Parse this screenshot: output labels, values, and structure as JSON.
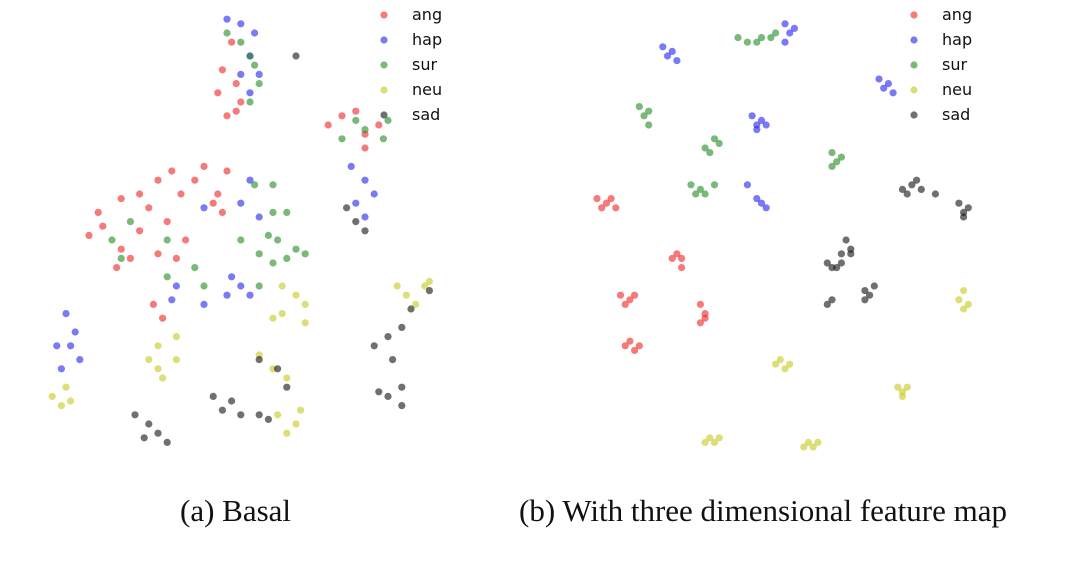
{
  "legend": [
    {
      "key": "ang",
      "label": "ang",
      "color": "#ee2222"
    },
    {
      "key": "hap",
      "label": "hap",
      "color": "#2222ee"
    },
    {
      "key": "sur",
      "label": "sur",
      "color": "#228b22"
    },
    {
      "key": "neu",
      "label": "neu",
      "color": "#c8c81e"
    },
    {
      "key": "sad",
      "label": "sad",
      "color": "#111111"
    }
  ],
  "captions": {
    "a": "(a) Basal",
    "b": "(b) With three dimensional feature map"
  },
  "chart_data": [
    {
      "type": "scatter",
      "title": "",
      "xlabel": "",
      "ylabel": "",
      "xlim": [
        0,
        100
      ],
      "ylim": [
        0,
        100
      ],
      "grid": false,
      "legend_position": "top-right",
      "series": [
        {
          "name": "ang",
          "points": [
            [
              46,
              93
            ],
            [
              44,
              87
            ],
            [
              47,
              84
            ],
            [
              48,
              80
            ],
            [
              43,
              82
            ],
            [
              45,
              77
            ],
            [
              47,
              78
            ],
            [
              40,
              66
            ],
            [
              33,
              65
            ],
            [
              30,
              63
            ],
            [
              26,
              60
            ],
            [
              22,
              59
            ],
            [
              17,
              56
            ],
            [
              18,
              53
            ],
            [
              15,
              51
            ],
            [
              28,
              57
            ],
            [
              35,
              60
            ],
            [
              38,
              63
            ],
            [
              42,
              58
            ],
            [
              44,
              56
            ],
            [
              32,
              54
            ],
            [
              26,
              52
            ],
            [
              22,
              48
            ],
            [
              24,
              46
            ],
            [
              30,
              47
            ],
            [
              36,
              50
            ],
            [
              21,
              44
            ],
            [
              34,
              46
            ],
            [
              45,
              65
            ],
            [
              43,
              60
            ],
            [
              73,
              78
            ],
            [
              78,
              75
            ],
            [
              75,
              73
            ],
            [
              70,
              77
            ],
            [
              67,
              75
            ],
            [
              75,
              70
            ],
            [
              29,
              36
            ],
            [
              31,
              33
            ]
          ]
        },
        {
          "name": "hap",
          "points": [
            [
              45,
              98
            ],
            [
              48,
              97
            ],
            [
              51,
              95
            ],
            [
              50,
              90
            ],
            [
              52,
              86
            ],
            [
              50,
              82
            ],
            [
              48,
              86
            ],
            [
              72,
              66
            ],
            [
              75,
              63
            ],
            [
              77,
              60
            ],
            [
              73,
              58
            ],
            [
              75,
              55
            ],
            [
              50,
              63
            ],
            [
              48,
              58
            ],
            [
              52,
              55
            ],
            [
              40,
              57
            ],
            [
              46,
              42
            ],
            [
              48,
              40
            ],
            [
              50,
              38
            ],
            [
              45,
              38
            ],
            [
              34,
              40
            ],
            [
              40,
              36
            ],
            [
              33,
              37
            ],
            [
              10,
              34
            ],
            [
              12,
              30
            ],
            [
              11,
              27
            ],
            [
              13,
              24
            ],
            [
              9,
              22
            ],
            [
              8,
              27
            ]
          ]
        },
        {
          "name": "sur",
          "points": [
            [
              45,
              95
            ],
            [
              48,
              93
            ],
            [
              50,
              90
            ],
            [
              51,
              88
            ],
            [
              52,
              84
            ],
            [
              50,
              80
            ],
            [
              70,
              72
            ],
            [
              75,
              74
            ],
            [
              80,
              76
            ],
            [
              79,
              72
            ],
            [
              73,
              76
            ],
            [
              51,
              62
            ],
            [
              55,
              62
            ],
            [
              55,
              56
            ],
            [
              58,
              56
            ],
            [
              54,
              51
            ],
            [
              56,
              50
            ],
            [
              48,
              50
            ],
            [
              52,
              47
            ],
            [
              58,
              46
            ],
            [
              62,
              47
            ],
            [
              55,
              45
            ],
            [
              52,
              40
            ],
            [
              20,
              50
            ],
            [
              22,
              46
            ],
            [
              24,
              54
            ],
            [
              32,
              50
            ],
            [
              38,
              44
            ],
            [
              40,
              40
            ],
            [
              32,
              42
            ],
            [
              60,
              48
            ]
          ]
        },
        {
          "name": "neu",
          "points": [
            [
              89,
              41
            ],
            [
              84,
              38
            ],
            [
              86,
              36
            ],
            [
              88,
              40
            ],
            [
              82,
              40
            ],
            [
              57,
              40
            ],
            [
              60,
              38
            ],
            [
              62,
              36
            ],
            [
              57,
              34
            ],
            [
              62,
              32
            ],
            [
              55,
              33
            ],
            [
              30,
              27
            ],
            [
              34,
              29
            ],
            [
              28,
              24
            ],
            [
              30,
              22
            ],
            [
              34,
              24
            ],
            [
              31,
              20
            ],
            [
              7,
              16
            ],
            [
              9,
              14
            ],
            [
              10,
              18
            ],
            [
              11,
              15
            ],
            [
              52,
              25
            ],
            [
              55,
              22
            ],
            [
              58,
              20
            ],
            [
              56,
              12
            ],
            [
              60,
              10
            ],
            [
              58,
              8
            ],
            [
              61,
              13
            ]
          ]
        },
        {
          "name": "sad",
          "points": [
            [
              60,
              90
            ],
            [
              89,
              39
            ],
            [
              85,
              35
            ],
            [
              83,
              31
            ],
            [
              80,
              29
            ],
            [
              77,
              27
            ],
            [
              81,
              24
            ],
            [
              83,
              18
            ],
            [
              80,
              16
            ],
            [
              83,
              14
            ],
            [
              78,
              17
            ],
            [
              56,
              22
            ],
            [
              58,
              18
            ],
            [
              52,
              24
            ],
            [
              42,
              16
            ],
            [
              46,
              15
            ],
            [
              44,
              13
            ],
            [
              48,
              12
            ],
            [
              52,
              12
            ],
            [
              54,
              11
            ],
            [
              25,
              12
            ],
            [
              28,
              10
            ],
            [
              30,
              8
            ],
            [
              32,
              6
            ],
            [
              27,
              7
            ],
            [
              73,
              54
            ],
            [
              75,
              52
            ],
            [
              71,
              57
            ]
          ]
        }
      ]
    },
    {
      "type": "scatter",
      "title": "",
      "xlabel": "",
      "ylabel": "",
      "xlim": [
        0,
        100
      ],
      "ylim": [
        0,
        100
      ],
      "grid": false,
      "legend_position": "top-right",
      "series": [
        {
          "name": "ang",
          "points": [
            [
              10,
              59
            ],
            [
              12,
              58
            ],
            [
              11,
              57
            ],
            [
              13,
              59
            ],
            [
              14,
              57
            ],
            [
              27,
              47
            ],
            [
              28,
              46
            ],
            [
              26,
              46
            ],
            [
              28,
              44
            ],
            [
              15,
              38
            ],
            [
              17,
              37
            ],
            [
              16,
              36
            ],
            [
              18,
              38
            ],
            [
              32,
              36
            ],
            [
              33,
              34
            ],
            [
              32,
              32
            ],
            [
              33,
              33
            ],
            [
              17,
              28
            ],
            [
              18,
              26
            ],
            [
              16,
              27
            ],
            [
              19,
              27
            ]
          ]
        },
        {
          "name": "hap",
          "points": [
            [
              24,
              92
            ],
            [
              25,
              90
            ],
            [
              26,
              91
            ],
            [
              27,
              89
            ],
            [
              50,
              97
            ],
            [
              51,
              95
            ],
            [
              52,
              96
            ],
            [
              50,
              93
            ],
            [
              70,
              85
            ],
            [
              71,
              83
            ],
            [
              72,
              84
            ],
            [
              73,
              82
            ],
            [
              43,
              77
            ],
            [
              44,
              75
            ],
            [
              45,
              76
            ],
            [
              46,
              75
            ],
            [
              44,
              74
            ],
            [
              44,
              59
            ],
            [
              45,
              58
            ],
            [
              46,
              57
            ],
            [
              42,
              62
            ]
          ]
        },
        {
          "name": "sur",
          "points": [
            [
              42,
              93
            ],
            [
              45,
              94
            ],
            [
              47,
              94
            ],
            [
              48,
              95
            ],
            [
              44,
              93
            ],
            [
              40,
              94
            ],
            [
              19,
              79
            ],
            [
              20,
              77
            ],
            [
              21,
              78
            ],
            [
              21,
              75
            ],
            [
              33,
              70
            ],
            [
              35,
              72
            ],
            [
              36,
              71
            ],
            [
              34,
              69
            ],
            [
              60,
              69
            ],
            [
              61,
              67
            ],
            [
              62,
              68
            ],
            [
              60,
              66
            ],
            [
              30,
              62
            ],
            [
              32,
              61
            ],
            [
              33,
              60
            ],
            [
              35,
              62
            ],
            [
              31,
              60
            ]
          ]
        },
        {
          "name": "neu",
          "points": [
            [
              49,
              24
            ],
            [
              50,
              22
            ],
            [
              51,
              23
            ],
            [
              48,
              23
            ],
            [
              74,
              18
            ],
            [
              75,
              17
            ],
            [
              76,
              18
            ],
            [
              75,
              16
            ],
            [
              87,
              37
            ],
            [
              88,
              35
            ],
            [
              89,
              36
            ],
            [
              88,
              39
            ],
            [
              34,
              7
            ],
            [
              35,
              6
            ],
            [
              36,
              7
            ],
            [
              33,
              6
            ],
            [
              55,
              6
            ],
            [
              56,
              5
            ],
            [
              57,
              6
            ],
            [
              54,
              5
            ]
          ]
        },
        {
          "name": "sad",
          "points": [
            [
              75,
              61
            ],
            [
              77,
              62
            ],
            [
              78,
              63
            ],
            [
              76,
              60
            ],
            [
              79,
              61
            ],
            [
              82,
              60
            ],
            [
              87,
              58
            ],
            [
              88,
              56
            ],
            [
              89,
              57
            ],
            [
              88,
              55
            ],
            [
              59,
              45
            ],
            [
              61,
              44
            ],
            [
              62,
              45
            ],
            [
              60,
              44
            ],
            [
              63,
              50
            ],
            [
              64,
              48
            ],
            [
              64,
              47
            ],
            [
              62,
              47
            ],
            [
              67,
              39
            ],
            [
              68,
              38
            ],
            [
              69,
              40
            ],
            [
              67,
              37
            ],
            [
              59,
              36
            ],
            [
              60,
              37
            ]
          ]
        }
      ]
    }
  ]
}
